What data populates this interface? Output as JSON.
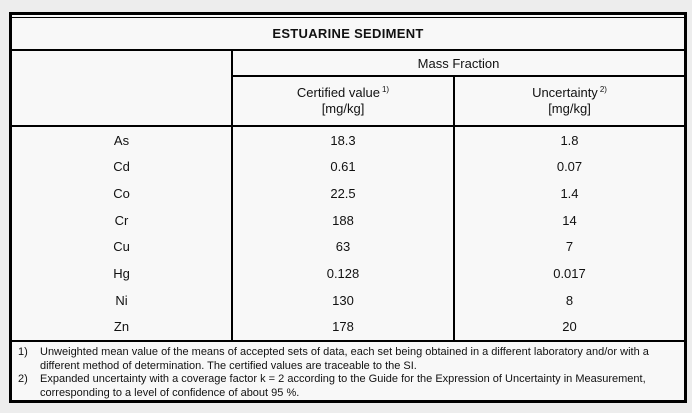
{
  "page": {
    "background_color": "#ededed",
    "table_background_color": "#f8f8f8",
    "border_color": "#000000",
    "text_color": "#111111"
  },
  "table": {
    "title": "ESTUARINE SEDIMENT",
    "group_header": "Mass Fraction",
    "columns": [
      {
        "label": "Certified value",
        "footnote_ref": "1)",
        "unit": "[mg/kg]"
      },
      {
        "label": "Uncertainty",
        "footnote_ref": "2)",
        "unit": "[mg/kg]"
      }
    ],
    "rows": [
      {
        "element": "As",
        "certified_value": "18.3",
        "uncertainty": "1.8"
      },
      {
        "element": "Cd",
        "certified_value": "0.61",
        "uncertainty": "0.07"
      },
      {
        "element": "Co",
        "certified_value": "22.5",
        "uncertainty": "1.4"
      },
      {
        "element": "Cr",
        "certified_value": "188",
        "uncertainty": "14"
      },
      {
        "element": "Cu",
        "certified_value": "63",
        "uncertainty": "7"
      },
      {
        "element": "Hg",
        "certified_value": "0.128",
        "uncertainty": "0.017"
      },
      {
        "element": "Ni",
        "certified_value": "130",
        "uncertainty": "8"
      },
      {
        "element": "Zn",
        "certified_value": "178",
        "uncertainty": "20"
      }
    ],
    "footnotes": [
      {
        "ref": "1)",
        "text": "Unweighted mean value of the means of accepted sets of data, each set being obtained in a different laboratory and/or with a different method of determination. The certified values are traceable to the SI."
      },
      {
        "ref": "2)",
        "text": "Expanded uncertainty with a coverage factor k = 2 according to the Guide for the Expression of Uncertainty in Measurement, corresponding to a level of confidence of about 95 %."
      }
    ]
  }
}
